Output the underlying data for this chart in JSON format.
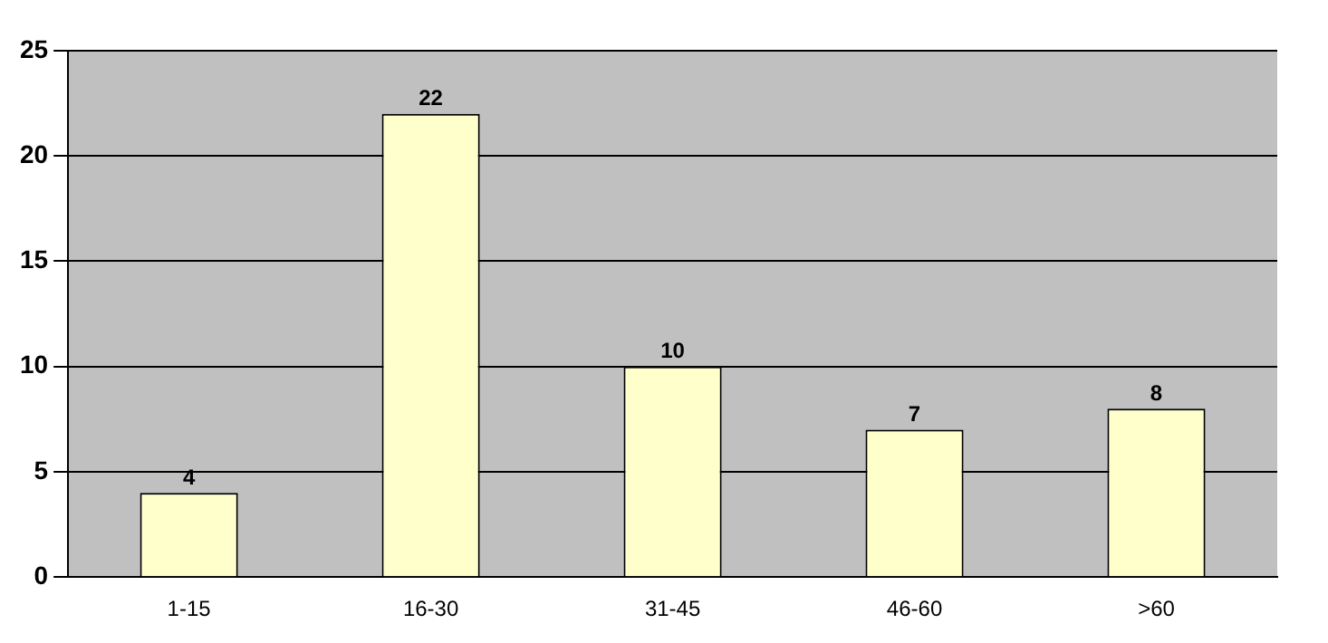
{
  "chart_data": {
    "type": "bar",
    "categories": [
      "1-15",
      "16-30",
      "31-45",
      "46-60",
      ">60"
    ],
    "values": [
      4,
      22,
      10,
      7,
      8
    ],
    "color": "#ffffcc",
    "ylim": [
      0,
      25
    ],
    "yticks": [
      0,
      5,
      10,
      15,
      20,
      25
    ],
    "grid": "y",
    "data_labels": true,
    "legend": false
  }
}
